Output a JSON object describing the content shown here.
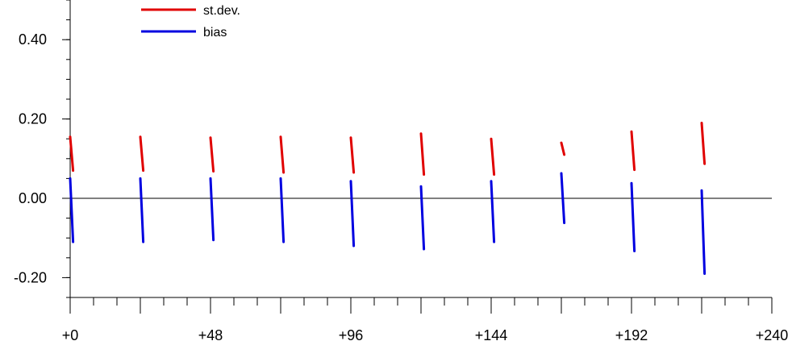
{
  "chart_data": {
    "type": "line",
    "title": "",
    "xlabel": "",
    "ylabel": "",
    "xlim": [
      0,
      240
    ],
    "ylim": [
      -0.25,
      0.5
    ],
    "x_ticks": [
      0,
      48,
      96,
      144,
      192,
      240
    ],
    "x_tick_labels": [
      "+0",
      "+48",
      "+96",
      "+144",
      "+192",
      "+240"
    ],
    "y_ticks": [
      -0.2,
      0.0,
      0.2,
      0.4
    ],
    "y_tick_labels": [
      "-0.20",
      "0.00",
      "0.20",
      "0.40"
    ],
    "zero_line": true,
    "grid": false,
    "legend_position": "top-left",
    "series": [
      {
        "name": "st.dev.",
        "color": "#e00000",
        "segments": [
          {
            "x": [
              0,
              1
            ],
            "y": [
              0.155,
              0.07
            ]
          },
          {
            "x": [
              24,
              25
            ],
            "y": [
              0.155,
              0.07
            ]
          },
          {
            "x": [
              48,
              49
            ],
            "y": [
              0.153,
              0.068
            ]
          },
          {
            "x": [
              72,
              73
            ],
            "y": [
              0.155,
              0.065
            ]
          },
          {
            "x": [
              96,
              97
            ],
            "y": [
              0.153,
              0.065
            ]
          },
          {
            "x": [
              120,
              121
            ],
            "y": [
              0.163,
              0.06
            ]
          },
          {
            "x": [
              144,
              145
            ],
            "y": [
              0.15,
              0.06
            ]
          },
          {
            "x": [
              168,
              169
            ],
            "y": [
              0.14,
              0.11
            ]
          },
          {
            "x": [
              192,
              193
            ],
            "y": [
              0.168,
              0.072
            ]
          },
          {
            "x": [
              216,
              217
            ],
            "y": [
              0.19,
              0.087
            ]
          }
        ]
      },
      {
        "name": "bias",
        "color": "#0000e0",
        "segments": [
          {
            "x": [
              0,
              1
            ],
            "y": [
              0.05,
              -0.11
            ]
          },
          {
            "x": [
              24,
              25
            ],
            "y": [
              0.05,
              -0.11
            ]
          },
          {
            "x": [
              48,
              49
            ],
            "y": [
              0.05,
              -0.105
            ]
          },
          {
            "x": [
              72,
              73
            ],
            "y": [
              0.05,
              -0.11
            ]
          },
          {
            "x": [
              96,
              97
            ],
            "y": [
              0.043,
              -0.12
            ]
          },
          {
            "x": [
              120,
              121
            ],
            "y": [
              0.03,
              -0.128
            ]
          },
          {
            "x": [
              144,
              145
            ],
            "y": [
              0.043,
              -0.11
            ]
          },
          {
            "x": [
              168,
              169
            ],
            "y": [
              0.063,
              -0.062
            ]
          },
          {
            "x": [
              192,
              193
            ],
            "y": [
              0.038,
              -0.133
            ]
          },
          {
            "x": [
              216,
              217
            ],
            "y": [
              0.02,
              -0.19
            ]
          }
        ]
      }
    ]
  }
}
